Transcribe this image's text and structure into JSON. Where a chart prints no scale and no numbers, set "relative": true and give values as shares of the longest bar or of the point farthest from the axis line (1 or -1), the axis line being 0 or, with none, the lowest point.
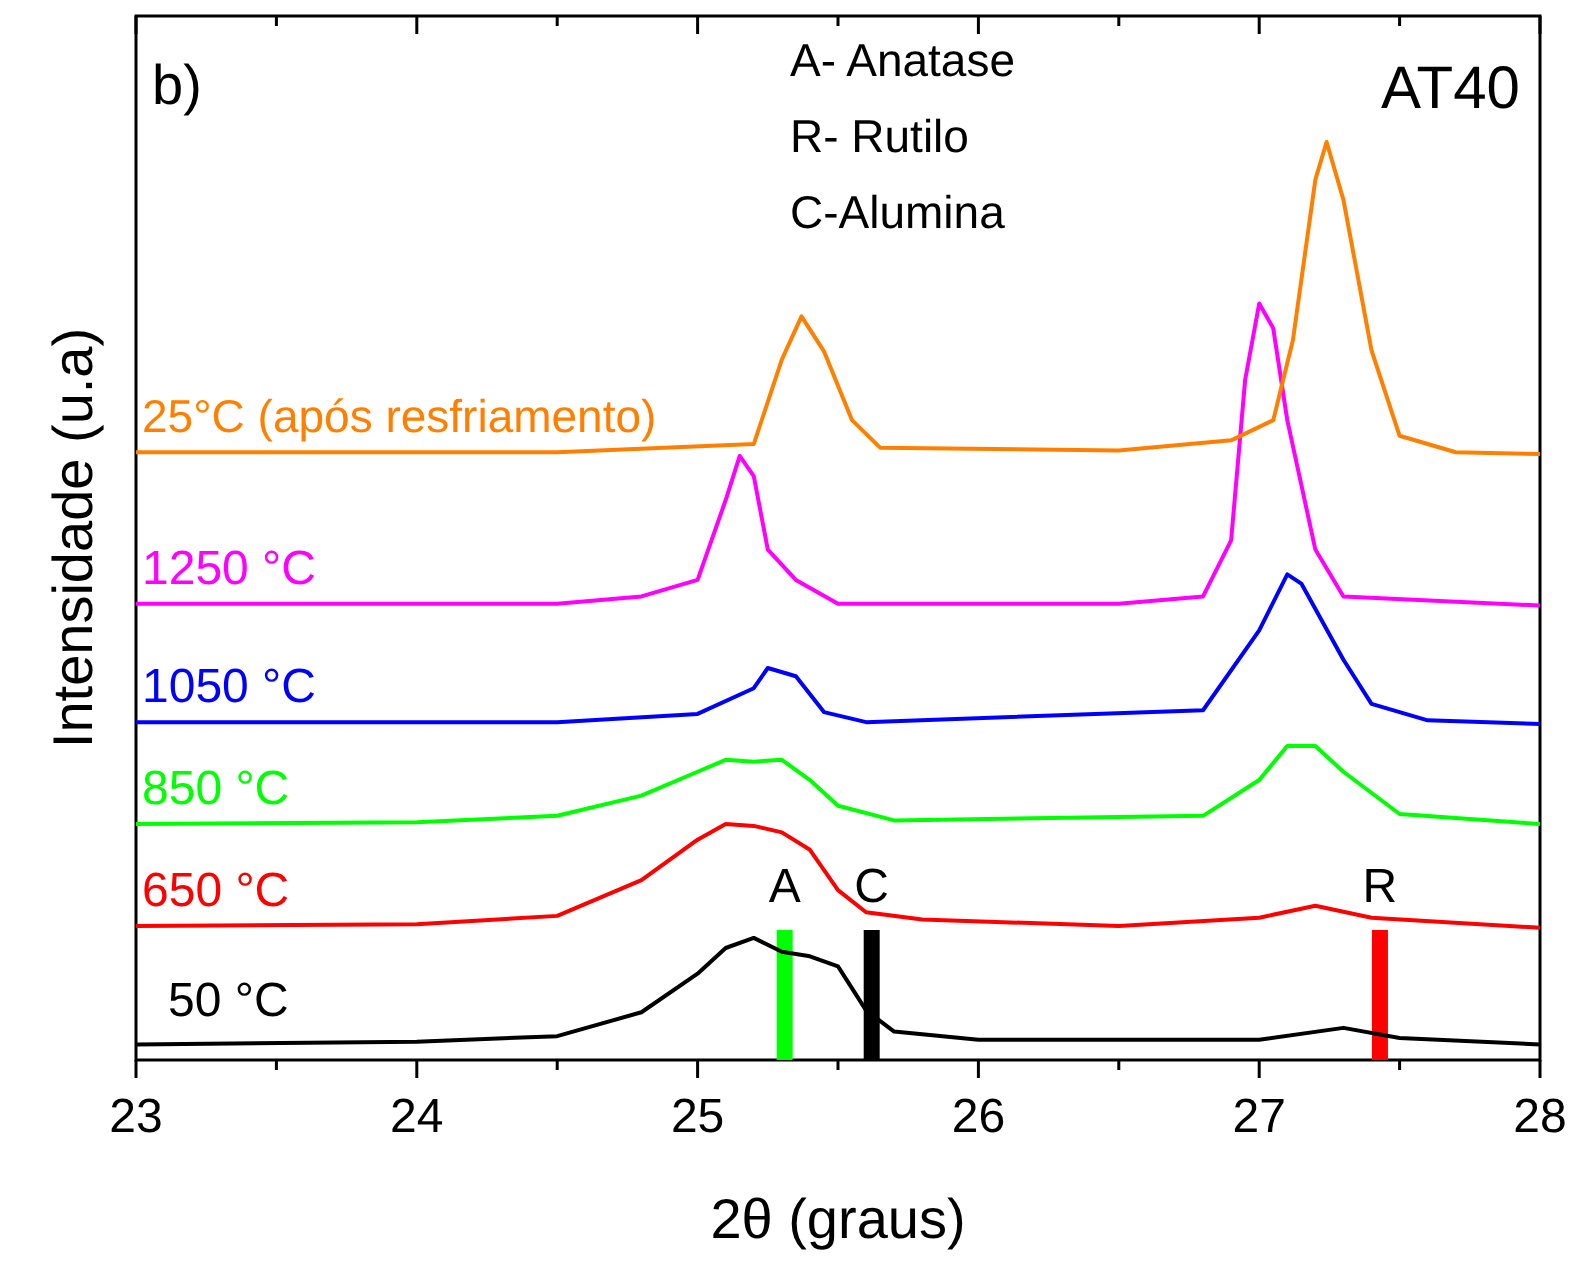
{
  "chart_data": {
    "type": "line",
    "relative": true,
    "xlabel": "2θ (graus)",
    "ylabel": "Intensidade (u.a)",
    "xlim": [
      23,
      28
    ],
    "xticks": [
      23,
      {
        "value": 23.5,
        "label": null
      },
      24,
      {
        "value": 24.5,
        "label": null
      },
      25,
      {
        "value": 25.5,
        "label": null
      },
      26,
      {
        "value": 26.5,
        "label": null
      },
      27,
      {
        "value": 27.5,
        "label": null
      },
      28
    ],
    "annotations": [
      "b)",
      "A- Anatase",
      "R- Rutilo",
      "C-Alumina",
      "AT40"
    ],
    "ref_lines": [
      {
        "axis": "x",
        "value": 25.31,
        "label": "A",
        "color": "#00ff00"
      },
      {
        "axis": "x",
        "value": 25.62,
        "label": "C",
        "color": "#000000"
      },
      {
        "axis": "x",
        "value": 27.43,
        "label": "R",
        "color": "#ff0000"
      }
    ],
    "series": [
      {
        "name": "50 °C",
        "color": "#000000",
        "x": [
          23,
          24,
          24.5,
          24.8,
          25,
          25.1,
          25.2,
          25.3,
          25.4,
          25.5,
          25.6,
          25.7,
          26,
          27,
          27.3,
          27.5,
          28
        ],
        "values": [
          0.017,
          0.02,
          0.026,
          0.052,
          0.094,
          0.122,
          0.133,
          0.118,
          0.113,
          0.102,
          0.054,
          0.031,
          0.022,
          0.022,
          0.035,
          0.024,
          0.017
        ]
      },
      {
        "name": "650 °C",
        "color": "#ff0000",
        "x": [
          23,
          24,
          24.5,
          24.8,
          25,
          25.1,
          25.2,
          25.3,
          25.4,
          25.5,
          25.6,
          25.8,
          26.5,
          27,
          27.2,
          27.4,
          28
        ],
        "values": [
          0.146,
          0.148,
          0.157,
          0.196,
          0.24,
          0.257,
          0.255,
          0.248,
          0.229,
          0.185,
          0.161,
          0.153,
          0.146,
          0.155,
          0.168,
          0.155,
          0.144
        ]
      },
      {
        "name": "850 °C",
        "color": "#00ff00",
        "x": [
          23,
          24,
          24.5,
          24.8,
          25,
          25.1,
          25.2,
          25.3,
          25.4,
          25.5,
          25.7,
          26.8,
          27,
          27.1,
          27.2,
          27.3,
          27.5,
          28
        ],
        "values": [
          0.257,
          0.259,
          0.266,
          0.288,
          0.314,
          0.327,
          0.325,
          0.327,
          0.305,
          0.277,
          0.261,
          0.266,
          0.305,
          0.342,
          0.342,
          0.314,
          0.268,
          0.257
        ]
      },
      {
        "name": "1050 °C",
        "color": "#0000ff",
        "x": [
          23,
          24.5,
          25,
          25.2,
          25.25,
          25.35,
          25.45,
          25.6,
          26.8,
          27,
          27.1,
          27.15,
          27.3,
          27.4,
          27.6,
          28
        ],
        "values": [
          0.368,
          0.368,
          0.377,
          0.405,
          0.427,
          0.418,
          0.379,
          0.368,
          0.381,
          0.468,
          0.529,
          0.519,
          0.436,
          0.388,
          0.37,
          0.366
        ]
      },
      {
        "name": "1250 °C",
        "color": "#ff00ff",
        "x": [
          23,
          24.5,
          24.8,
          25,
          25.1,
          25.15,
          25.2,
          25.25,
          25.35,
          25.5,
          26.5,
          26.8,
          26.9,
          26.95,
          27,
          27.05,
          27.1,
          27.2,
          27.3,
          28
        ],
        "values": [
          0.497,
          0.497,
          0.505,
          0.523,
          0.61,
          0.658,
          0.636,
          0.556,
          0.523,
          0.497,
          0.497,
          0.505,
          0.566,
          0.741,
          0.824,
          0.797,
          0.697,
          0.556,
          0.505,
          0.495
        ]
      },
      {
        "name": "25°C (após resfriamento)",
        "color": "#ff8000",
        "x": [
          23,
          24.5,
          25.2,
          25.3,
          25.37,
          25.45,
          25.55,
          25.65,
          26.5,
          26.9,
          27.05,
          27.12,
          27.2,
          27.24,
          27.3,
          27.4,
          27.5,
          27.7,
          28
        ],
        "values": [
          0.662,
          0.662,
          0.671,
          0.763,
          0.81,
          0.772,
          0.697,
          0.667,
          0.664,
          0.675,
          0.697,
          0.784,
          0.959,
          1,
          0.937,
          0.773,
          0.68,
          0.662,
          0.66
        ]
      }
    ]
  }
}
